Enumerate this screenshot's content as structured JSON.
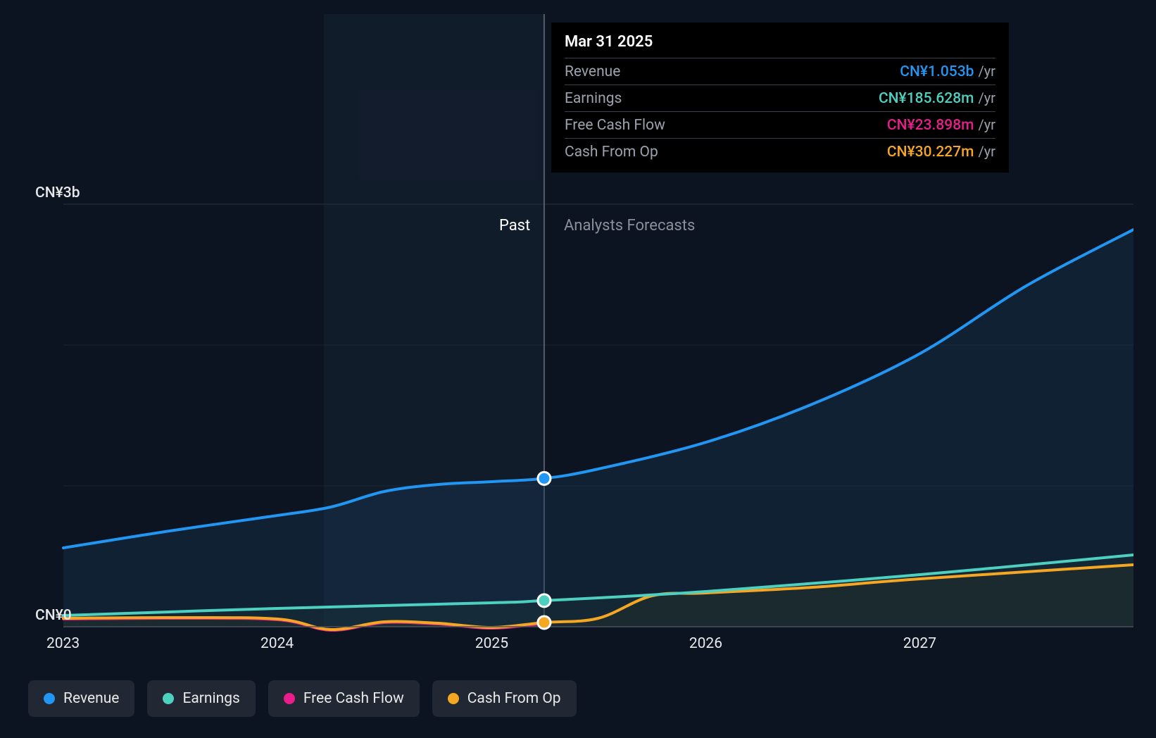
{
  "chart": {
    "type": "area-line",
    "background_color": "#0d1421",
    "grid_color": "#2a3040",
    "axis_color": "#4a5060",
    "ylim": [
      0,
      3200000000
    ],
    "y_ticks": [
      {
        "value": 0,
        "label": "CN¥0"
      },
      {
        "value": 3000000000,
        "label": "CN¥3b"
      }
    ],
    "y_minor_gridlines": [
      1000000000,
      2000000000
    ],
    "x_range": [
      "2023-01-01",
      "2027-12-31"
    ],
    "x_ticks": [
      "2023",
      "2024",
      "2025",
      "2026",
      "2027"
    ],
    "divider_date": "2025-03-31",
    "sections": {
      "past_label": "Past",
      "forecast_label": "Analysts Forecasts"
    },
    "past_shade_color": "#1a2a40",
    "past_shade_opacity": 0.35,
    "line_width": 4,
    "series": {
      "revenue": {
        "label": "Revenue",
        "color": "#2196f3",
        "area_fill": "#1a3a5a",
        "area_opacity": 0.35,
        "data": [
          [
            "2023-01-01",
            560000000
          ],
          [
            "2023-07-01",
            680000000
          ],
          [
            "2024-01-01",
            790000000
          ],
          [
            "2024-04-01",
            850000000
          ],
          [
            "2024-07-01",
            960000000
          ],
          [
            "2024-10-01",
            1010000000
          ],
          [
            "2025-01-01",
            1030000000
          ],
          [
            "2025-03-31",
            1053000000
          ],
          [
            "2025-07-01",
            1120000000
          ],
          [
            "2026-01-01",
            1310000000
          ],
          [
            "2026-07-01",
            1580000000
          ],
          [
            "2027-01-01",
            1940000000
          ],
          [
            "2027-07-01",
            2420000000
          ],
          [
            "2027-12-31",
            2820000000
          ]
        ]
      },
      "earnings": {
        "label": "Earnings",
        "color": "#4dd0c0",
        "area_fill": "#1a3a38",
        "area_opacity": 0.25,
        "data": [
          [
            "2023-01-01",
            80000000
          ],
          [
            "2024-01-01",
            130000000
          ],
          [
            "2025-01-01",
            170000000
          ],
          [
            "2025-03-31",
            185628000
          ],
          [
            "2026-01-01",
            250000000
          ],
          [
            "2027-01-01",
            370000000
          ],
          [
            "2027-12-31",
            510000000
          ]
        ]
      },
      "free_cash_flow": {
        "label": "Free Cash Flow",
        "color": "#e91e8c",
        "area_fill": "none",
        "data": [
          [
            "2023-01-01",
            55000000
          ],
          [
            "2023-07-01",
            60000000
          ],
          [
            "2024-01-01",
            50000000
          ],
          [
            "2024-04-01",
            -25000000
          ],
          [
            "2024-07-01",
            30000000
          ],
          [
            "2024-10-01",
            20000000
          ],
          [
            "2025-01-01",
            -10000000
          ],
          [
            "2025-03-31",
            23898000
          ]
        ]
      },
      "cash_from_op": {
        "label": "Cash From Op",
        "color": "#f5a623",
        "area_fill": "#3a2e18",
        "area_opacity": 0.25,
        "data": [
          [
            "2023-01-01",
            60000000
          ],
          [
            "2023-07-01",
            65000000
          ],
          [
            "2024-01-01",
            55000000
          ],
          [
            "2024-04-01",
            -20000000
          ],
          [
            "2024-07-01",
            35000000
          ],
          [
            "2024-10-01",
            25000000
          ],
          [
            "2025-01-01",
            -5000000
          ],
          [
            "2025-03-31",
            30227000
          ],
          [
            "2025-07-01",
            60000000
          ],
          [
            "2025-10-01",
            220000000
          ],
          [
            "2026-01-01",
            240000000
          ],
          [
            "2026-07-01",
            280000000
          ],
          [
            "2027-01-01",
            340000000
          ],
          [
            "2027-12-31",
            440000000
          ]
        ]
      }
    },
    "marker_date": "2025-03-31",
    "marker_series": [
      "revenue",
      "earnings",
      "cash_from_op"
    ],
    "marker_radius": 9,
    "marker_stroke": "#ffffff",
    "marker_stroke_width": 3
  },
  "tooltip": {
    "date": "Mar 31 2025",
    "rows": [
      {
        "label": "Revenue",
        "value": "CN¥1.053b",
        "unit": "/yr",
        "color": "#2196f3"
      },
      {
        "label": "Earnings",
        "value": "CN¥185.628m",
        "unit": "/yr",
        "color": "#4dd0c0"
      },
      {
        "label": "Free Cash Flow",
        "value": "CN¥23.898m",
        "unit": "/yr",
        "color": "#e91e8c"
      },
      {
        "label": "Cash From Op",
        "value": "CN¥30.227m",
        "unit": "/yr",
        "color": "#f5a623"
      }
    ]
  },
  "legend": [
    {
      "label": "Revenue",
      "color": "#2196f3"
    },
    {
      "label": "Earnings",
      "color": "#4dd0c0"
    },
    {
      "label": "Free Cash Flow",
      "color": "#e91e8c"
    },
    {
      "label": "Cash From Op",
      "color": "#f5a623"
    }
  ],
  "typography": {
    "axis_fontsize": 21,
    "tooltip_fontsize": 21,
    "legend_fontsize": 21
  }
}
